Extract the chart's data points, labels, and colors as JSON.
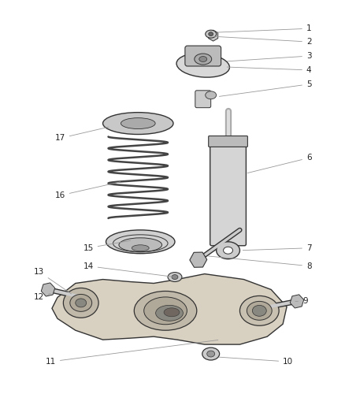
{
  "background_color": "#ffffff",
  "fig_width": 4.38,
  "fig_height": 5.33,
  "dpi": 100,
  "line_color": "#888888",
  "dark_color": "#333333",
  "part_gray": "#c8c8c8",
  "part_dark": "#888888",
  "label_fontsize": 7.5,
  "label_color": "#222222",
  "leader_lw": 0.6,
  "leader_color": "#999999"
}
